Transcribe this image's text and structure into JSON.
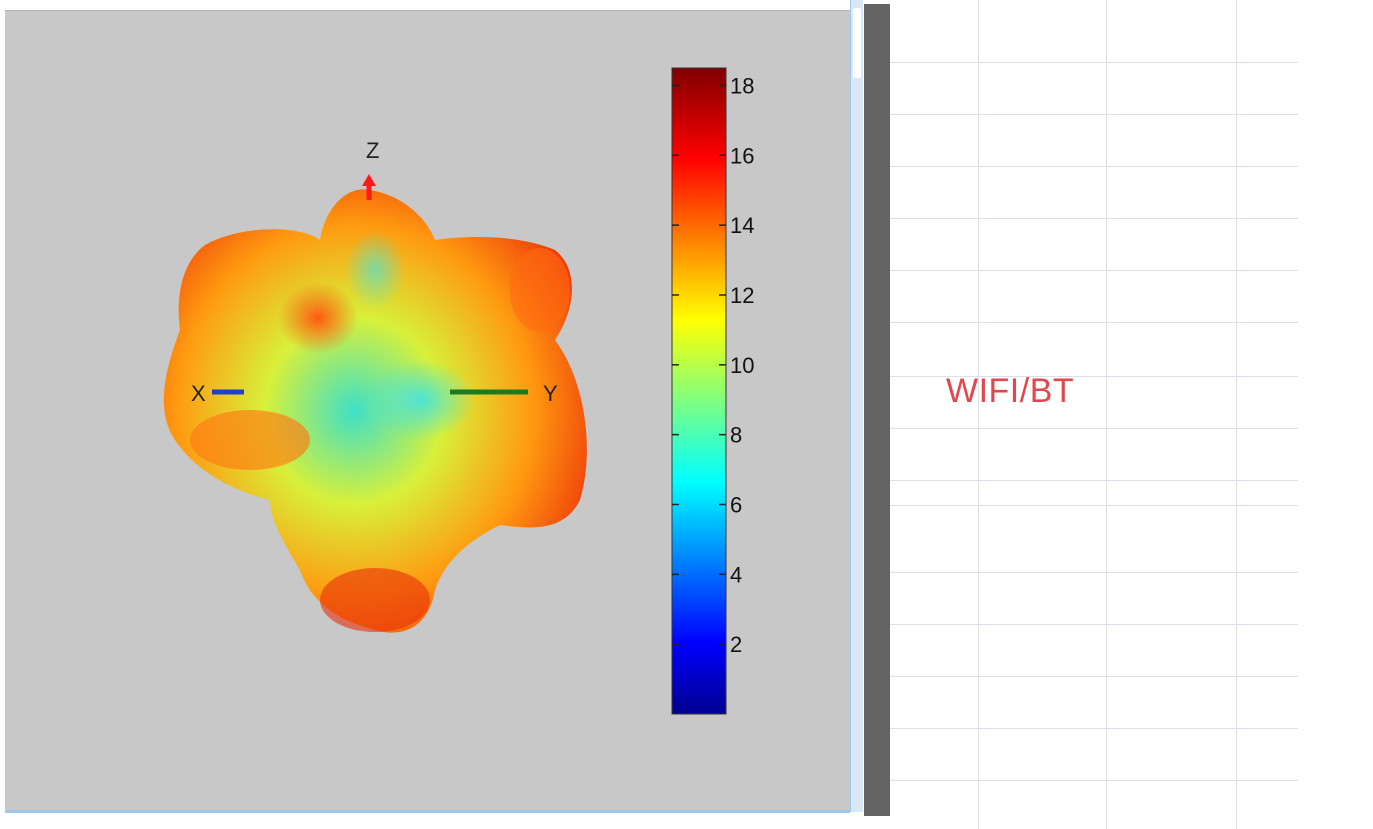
{
  "plot": {
    "axis_labels": {
      "x": "X",
      "y": "Y",
      "z": "Z"
    },
    "axis_colors": {
      "x": "#1f3fcf",
      "y": "#1e7a1e",
      "z": "#ff1a1a"
    },
    "background_color": "#c8c8c8"
  },
  "colorbar": {
    "colormap": "jet",
    "min": 0,
    "max": 18.5,
    "ticks": [
      "2",
      "4",
      "6",
      "8",
      "10",
      "12",
      "14",
      "16",
      "18"
    ]
  },
  "sheet": {
    "label": "WIFI/BT",
    "label_color": "#e0484f"
  }
}
